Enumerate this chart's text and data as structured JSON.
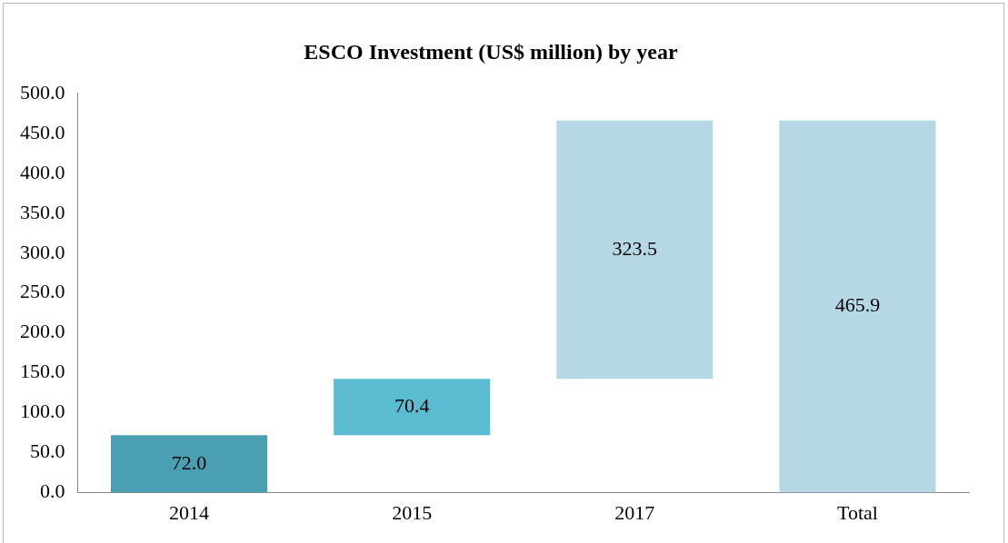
{
  "chart_data": {
    "type": "bar",
    "title": "ESCO Investment (US$ million) by year",
    "categories": [
      "2014",
      "2015",
      "2017",
      "Total"
    ],
    "values": [
      72.0,
      70.4,
      323.5,
      465.9
    ],
    "base": [
      0,
      72.0,
      142.4,
      0
    ],
    "colors": [
      "#4a9fb2",
      "#5bbcd1",
      "#b5d8e4",
      "#b5d8e4"
    ],
    "value_labels": [
      "72.0",
      "70.4",
      "323.5",
      "465.9"
    ],
    "ylim": [
      0,
      500
    ],
    "yticks": [
      {
        "value": 0,
        "label": "0.0"
      },
      {
        "value": 50,
        "label": "50.0"
      },
      {
        "value": 100,
        "label": "100.0"
      },
      {
        "value": 150,
        "label": "150.0"
      },
      {
        "value": 200,
        "label": "200.0"
      },
      {
        "value": 250,
        "label": "250.0"
      },
      {
        "value": 300,
        "label": "300.0"
      },
      {
        "value": 350,
        "label": "350.0"
      },
      {
        "value": 400,
        "label": "400.0"
      },
      {
        "value": 450,
        "label": "450.0"
      },
      {
        "value": 500,
        "label": "500.0"
      }
    ],
    "grid": false,
    "legend": false
  }
}
